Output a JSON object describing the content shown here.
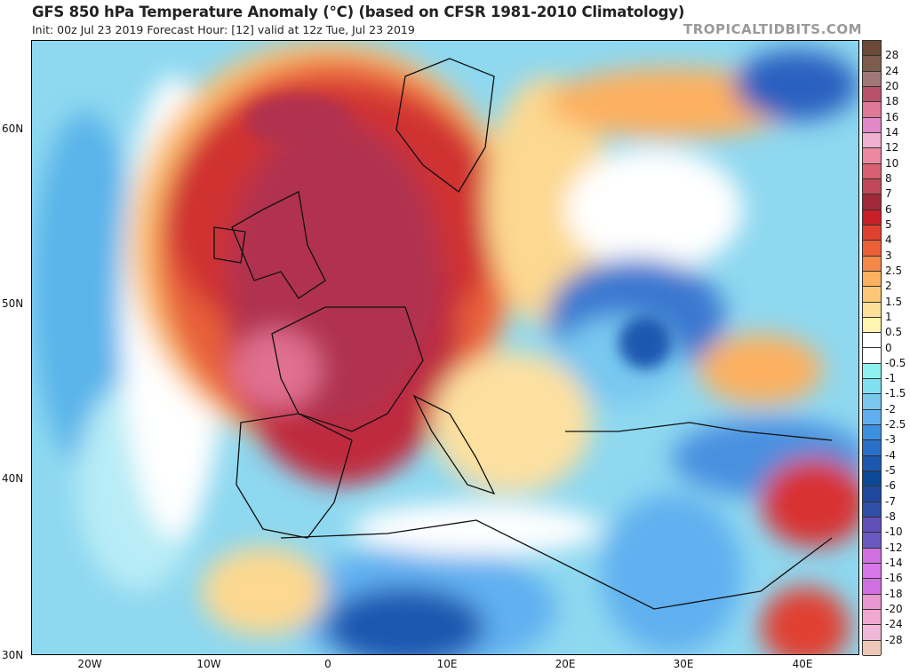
{
  "header": {
    "title": "GFS 850 hPa Temperature Anomaly (°C) (based on CFSR 1981-2010 Climatology)",
    "subtitle": "Init: 00z Jul 23 2019   Forecast Hour: [12]   valid at 12z Tue, Jul 23 2019",
    "brand": "TROPICALTIDBITS.COM"
  },
  "axes": {
    "lat_labels": [
      "60N",
      "50N",
      "40N",
      "30N"
    ],
    "lon_labels": [
      "20W",
      "10W",
      "0",
      "10E",
      "20E",
      "30E",
      "40E"
    ]
  },
  "colorbar": {
    "labels": [
      "28",
      "24",
      "20",
      "18",
      "16",
      "14",
      "12",
      "10",
      "8",
      "7",
      "6",
      "5",
      "4",
      "3",
      "2.5",
      "2",
      "1.5",
      "1",
      "0.5",
      "0",
      "-0.5",
      "-1",
      "-1.5",
      "-2",
      "-2.5",
      "-3",
      "-4",
      "-5",
      "-6",
      "-7",
      "-8",
      "-10",
      "-12",
      "-14",
      "-16",
      "-18",
      "-20",
      "-24",
      "-28"
    ],
    "colors": [
      "#6b4a3a",
      "#7c5c4c",
      "#a07878",
      "#b8506a",
      "#e07898",
      "#e088c8",
      "#f0b0d0",
      "#ec88a0",
      "#d86070",
      "#c04858",
      "#a02838",
      "#c82028",
      "#e04030",
      "#ec6038",
      "#f48848",
      "#fcb060",
      "#fcc878",
      "#fde098",
      "#fff4b0",
      "#ffffff",
      "#ffffff",
      "#90f0f0",
      "#80e0f0",
      "#78c8f0",
      "#60b0f0",
      "#3c90e0",
      "#2a70c8",
      "#1c58b0",
      "#0c4898",
      "#2048a0",
      "#3050a8",
      "#6050b8",
      "#6858c0",
      "#d070e0",
      "#d878e8",
      "#d070e0",
      "#e898d0",
      "#f0a8d0",
      "#f0b8d8",
      "#f0c8b8"
    ]
  },
  "map": {
    "colors": {
      "atlantic": "#8ed8f0",
      "warm": "#e8603a",
      "hot": "#b03050",
      "hottest": "#e07090",
      "cold": "#2a66c8"
    }
  }
}
